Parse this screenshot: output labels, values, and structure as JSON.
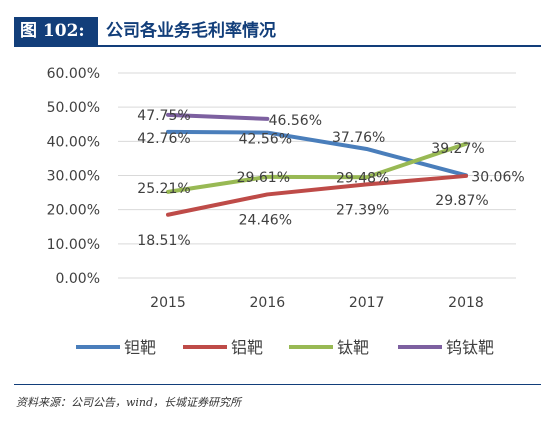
{
  "header": {
    "figure_number": "图 102:",
    "title": "公司各业务毛利率情况"
  },
  "source_note": "资料来源：公司公告，wind，长城证券研究所",
  "chart_data": {
    "type": "line",
    "title": "",
    "xlabel": "",
    "ylabel": "",
    "categories": [
      "2015",
      "2016",
      "2017",
      "2018"
    ],
    "ylim": [
      0,
      60
    ],
    "yticks": [
      "0.00%",
      "10.00%",
      "20.00%",
      "30.00%",
      "40.00%",
      "50.00%",
      "60.00%"
    ],
    "grid": true,
    "legend_position": "bottom",
    "series": [
      {
        "name": "钽靶",
        "color": "#4a7ebb",
        "values": [
          42.76,
          42.56,
          37.76,
          30.06
        ],
        "labels": [
          "42.76%",
          "42.56%",
          "37.76%",
          "30.06%"
        ]
      },
      {
        "name": "铝靶",
        "color": "#be4b48",
        "values": [
          18.51,
          24.46,
          27.39,
          29.87
        ],
        "labels": [
          "18.51%",
          "24.46%",
          "27.39%",
          "29.87%"
        ]
      },
      {
        "name": "钛靶",
        "color": "#98b954",
        "values": [
          25.21,
          29.61,
          29.48,
          39.27
        ],
        "labels": [
          "25.21%",
          "29.61%",
          "29.48%",
          "39.27%"
        ]
      },
      {
        "name": "钨钛靶",
        "color": "#7d60a0",
        "values": [
          47.75,
          46.56,
          null,
          null
        ],
        "labels": [
          "47.75%",
          "46.56%",
          null,
          null
        ]
      }
    ]
  }
}
